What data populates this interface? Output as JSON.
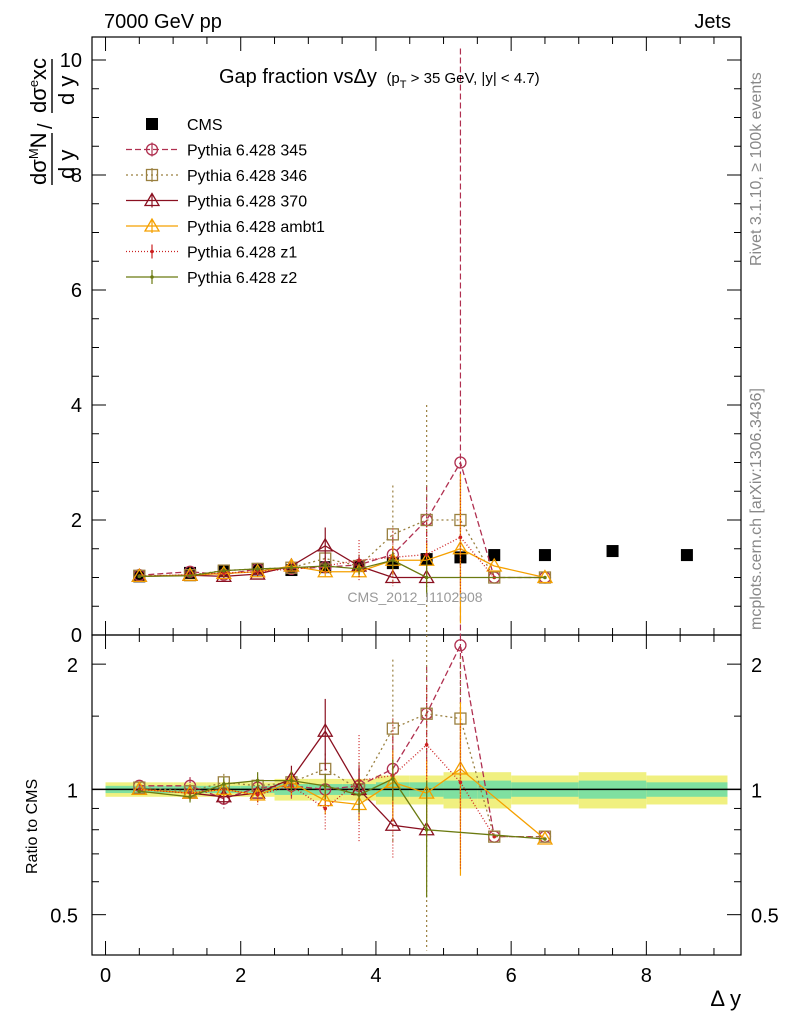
{
  "header": {
    "left": "7000 GeV pp",
    "right": "Jets",
    "side_top": "Rivet 3.1.10, ≥ 100k events",
    "side_bottom": "mcplots.cern.ch [arXiv:1306.3436]",
    "analysis_id": "CMS_2012_I1102908"
  },
  "chart_data": [
    {
      "type": "line",
      "panel": "main",
      "title_main": "Gap fraction vsΔy",
      "title_cut": "(p",
      "title_cut_sub": "T",
      "title_cut_rest": " > 35 GeV, |y| < 4.7)",
      "ylabel": "dσ^M N / d y / dσ^e xc / d y",
      "ylim": [
        0,
        10.4
      ],
      "xlim": [
        -0.2,
        9.4
      ],
      "yticks": [
        "0",
        "2",
        "4",
        "6",
        "8",
        "10"
      ],
      "ytick_values": [
        0,
        2,
        4,
        6,
        8,
        10
      ],
      "series": [
        {
          "name": "CMS",
          "color": "#000000",
          "marker": "square-filled",
          "dash": "none",
          "x": [
            0.5,
            1.25,
            1.75,
            2.25,
            2.75,
            3.25,
            3.75,
            4.25,
            4.75,
            5.25,
            5.75,
            6.5,
            7.5,
            8.6
          ],
          "y": [
            1.02,
            1.08,
            1.11,
            1.14,
            1.13,
            1.18,
            1.2,
            1.25,
            1.32,
            1.35,
            1.39,
            1.39,
            1.46,
            1.39
          ],
          "err": [
            0.02,
            0.02,
            0.02,
            0.02,
            0.03,
            0.03,
            0.04,
            0.05,
            0.06,
            0.07,
            0.06,
            0.05,
            0.05,
            0.05
          ],
          "ratio_err": [
            0.02,
            0.02,
            0.02,
            0.02,
            0.03,
            0.03,
            0.03,
            0.04,
            0.04,
            0.05,
            0.05,
            0.04,
            0.05,
            0.04
          ]
        },
        {
          "name": "Pythia 6.428 345",
          "color": "#b03050",
          "marker": "circle-open",
          "dash": "6,3",
          "x": [
            0.5,
            1.25,
            1.75,
            2.25,
            2.75,
            3.25,
            3.75,
            4.25,
            4.75,
            5.25,
            5.75,
            6.5
          ],
          "y": [
            1.04,
            1.1,
            1.05,
            1.15,
            1.15,
            1.18,
            1.22,
            1.4,
            2.0,
            3.0,
            1.0,
            1.0
          ],
          "err": [
            0.02,
            0.05,
            0.05,
            0.06,
            0.08,
            0.1,
            0.15,
            0.3,
            0.6,
            7.2,
            0.0,
            0.0
          ],
          "ratio": [
            1.02,
            1.02,
            0.95,
            1.01,
            1.02,
            1.0,
            1.02,
            1.12,
            1.52,
            2.22,
            0.77,
            0.77
          ],
          "ratio_err": [
            0.01,
            0.05,
            0.05,
            0.05,
            0.07,
            0.08,
            0.12,
            0.22,
            0.45,
            1.4,
            0.0,
            0.0
          ]
        },
        {
          "name": "Pythia 6.428 346",
          "color": "#9a8040",
          "marker": "square-open",
          "dash": "2,3",
          "x": [
            0.5,
            1.25,
            1.75,
            2.25,
            2.75,
            3.25,
            3.75,
            4.25,
            4.75,
            5.25,
            5.75,
            6.5
          ],
          "y": [
            1.03,
            1.04,
            1.12,
            1.15,
            1.17,
            1.33,
            1.2,
            1.75,
            2.0,
            2.0,
            1.0,
            1.0
          ],
          "err": [
            0.02,
            0.04,
            0.05,
            0.06,
            0.08,
            0.12,
            0.2,
            0.85,
            2.0,
            0.8,
            0.0,
            0.0
          ],
          "ratio": [
            1.01,
            0.99,
            1.04,
            1.02,
            1.04,
            1.12,
            1.0,
            1.4,
            1.52,
            1.48,
            0.77,
            0.77
          ],
          "ratio_err": [
            0.01,
            0.04,
            0.05,
            0.05,
            0.07,
            0.1,
            0.16,
            0.65,
            1.3,
            0.6,
            0.0,
            0.0
          ]
        },
        {
          "name": "Pythia 6.428 370",
          "color": "#8a1020",
          "marker": "triangle-open",
          "dash": "none",
          "x": [
            0.5,
            1.25,
            1.75,
            2.25,
            2.75,
            3.25,
            3.75,
            4.25,
            4.75
          ],
          "y": [
            1.02,
            1.04,
            1.02,
            1.06,
            1.2,
            1.55,
            1.2,
            1.0,
            1.0
          ],
          "err": [
            0.02,
            0.04,
            0.05,
            0.05,
            0.1,
            0.32,
            0.15,
            0.0,
            0.0
          ],
          "ratio": [
            1.0,
            0.98,
            0.96,
            0.98,
            1.06,
            1.38,
            1.0,
            0.82,
            0.8
          ],
          "ratio_err": [
            0.01,
            0.04,
            0.04,
            0.05,
            0.08,
            0.27,
            0.12,
            0.0,
            0.0
          ]
        },
        {
          "name": "Pythia 6.428 ambt1",
          "color": "#f5a000",
          "marker": "triangle-open",
          "dash": "none",
          "x": [
            0.5,
            1.25,
            1.75,
            2.25,
            2.75,
            3.25,
            3.75,
            4.25,
            4.75,
            5.25,
            5.75,
            6.5
          ],
          "y": [
            1.02,
            1.04,
            1.07,
            1.1,
            1.2,
            1.1,
            1.1,
            1.3,
            1.3,
            1.5,
            1.2,
            1.0
          ],
          "err": [
            0.02,
            0.04,
            0.05,
            0.05,
            0.1,
            0.08,
            0.1,
            0.25,
            0.3,
            1.3,
            0.0,
            0.0
          ],
          "ratio": [
            1.0,
            0.98,
            1.0,
            0.97,
            1.04,
            0.94,
            0.92,
            1.04,
            0.98,
            1.12,
            0.0,
            0.76
          ],
          "ratio_err": [
            0.01,
            0.04,
            0.04,
            0.04,
            0.07,
            0.07,
            0.08,
            0.2,
            0.2,
            0.5,
            0.0,
            0.0
          ]
        },
        {
          "name": "Pythia 6.428 z1",
          "color": "#cc2020",
          "marker": "dot",
          "dash": "1,2",
          "x": [
            0.5,
            1.25,
            1.75,
            2.25,
            2.75,
            3.25,
            3.75,
            4.25,
            4.75,
            5.25,
            5.75
          ],
          "y": [
            1.02,
            1.05,
            1.08,
            1.1,
            1.15,
            1.2,
            1.3,
            1.35,
            1.4,
            1.7,
            1.0
          ],
          "err": [
            0.02,
            0.04,
            0.05,
            0.06,
            0.08,
            0.12,
            0.35,
            0.5,
            0.6,
            1.0,
            0.0
          ],
          "ratio": [
            1.0,
            0.98,
            1.0,
            0.97,
            1.02,
            0.9,
            1.05,
            1.08,
            1.28,
            1.04,
            0.77
          ],
          "ratio_err": [
            0.01,
            0.04,
            0.05,
            0.05,
            0.07,
            0.1,
            0.3,
            0.4,
            0.5,
            0.4,
            0.0
          ]
        },
        {
          "name": "Pythia 6.428 z2",
          "color": "#6b7a10",
          "marker": "dot",
          "dash": "none",
          "x": [
            0.5,
            1.25,
            1.75,
            2.25,
            2.75,
            3.25,
            3.75,
            4.25,
            4.75,
            6.5
          ],
          "y": [
            1.02,
            1.03,
            1.12,
            1.15,
            1.17,
            1.2,
            1.15,
            1.3,
            1.0,
            1.0
          ],
          "err": [
            0.02,
            0.03,
            0.04,
            0.05,
            0.06,
            0.08,
            0.1,
            0.15,
            0.3,
            0.0
          ],
          "ratio": [
            0.99,
            0.96,
            1.03,
            1.05,
            1.05,
            1.02,
            0.97,
            1.06,
            0.8,
            0.76
          ],
          "ratio_err": [
            0.01,
            0.03,
            0.04,
            0.05,
            0.06,
            0.07,
            0.09,
            0.12,
            0.25,
            0.0
          ]
        }
      ]
    },
    {
      "type": "line",
      "panel": "ratio",
      "ylabel": "Ratio to CMS",
      "xlabel": "Δ y",
      "log_y": true,
      "ylim": [
        0.4,
        2.35
      ],
      "xlim": [
        -0.2,
        9.4
      ],
      "yticks": [
        "0.5",
        "1",
        "2"
      ],
      "ytick_values": [
        0.5,
        1,
        2
      ],
      "xticks": [
        "0",
        "2",
        "4",
        "6",
        "8"
      ],
      "xtick_values": [
        0,
        2,
        4,
        6,
        8
      ],
      "band_colors": {
        "inner": "#7fe0a0",
        "outer": "#f0f080"
      }
    }
  ]
}
